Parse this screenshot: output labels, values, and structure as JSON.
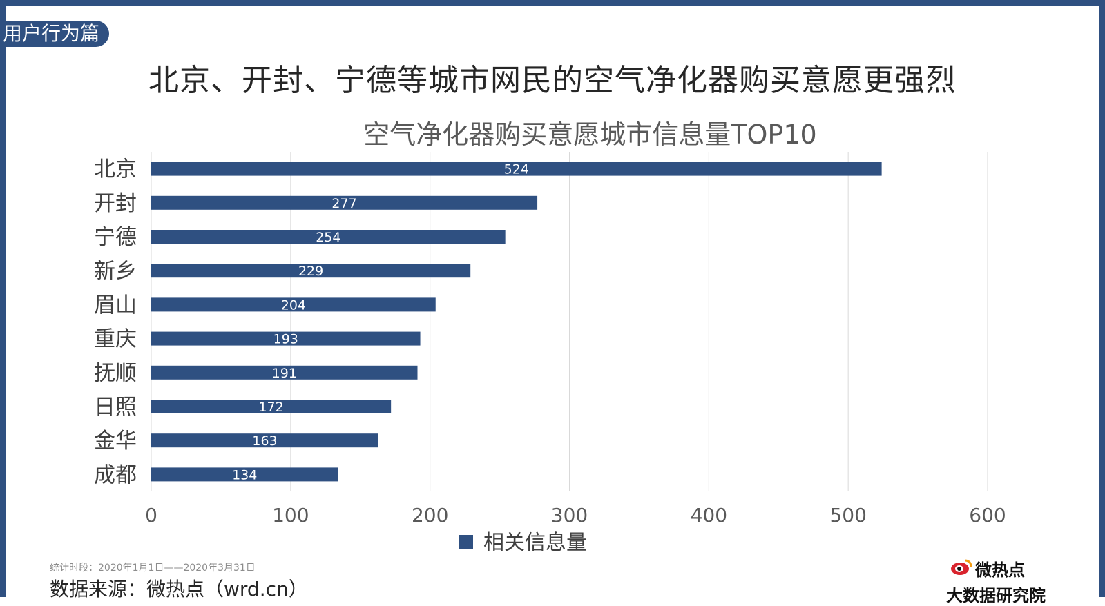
{
  "section_tag": "用户行为篇",
  "headline": "北京、开封、宁德等城市网民的空气净化器购买意愿更强烈",
  "footer": {
    "period": "统计时段：2020年1月1日——2020年3月31日",
    "source": "数据来源：微热点（wrd.cn）"
  },
  "logo": {
    "name": "微热点",
    "subtitle": "大数据研究院"
  },
  "colors": {
    "bar": "#2f5081",
    "frame": "#2f5081",
    "grid": "#d9d9d9",
    "accent_logo": "#d9232d"
  },
  "chart_data": {
    "type": "bar",
    "orientation": "horizontal",
    "title": "空气净化器购买意愿城市信息量TOP10",
    "categories": [
      "北京",
      "开封",
      "宁德",
      "新乡",
      "眉山",
      "重庆",
      "抚顺",
      "日照",
      "金华",
      "成都"
    ],
    "series": [
      {
        "name": "相关信息量",
        "values": [
          524,
          277,
          254,
          229,
          204,
          193,
          191,
          172,
          163,
          134
        ]
      }
    ],
    "xlim": [
      0,
      600
    ],
    "xticks": [
      0,
      100,
      200,
      300,
      400,
      500,
      600
    ],
    "grid": true,
    "legend": "bottom",
    "data_labels": true
  }
}
